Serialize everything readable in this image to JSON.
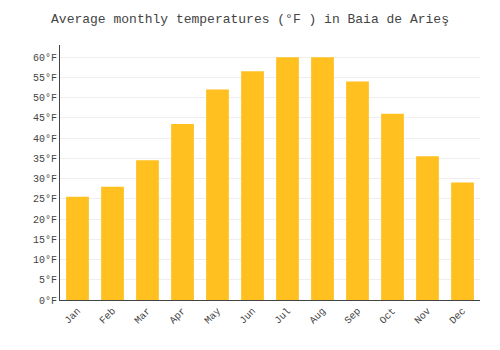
{
  "chart_data": {
    "type": "bar",
    "title": "Average monthly temperatures (°F ) in Baia de Arieş",
    "categories": [
      "Jan",
      "Feb",
      "Mar",
      "Apr",
      "May",
      "Jun",
      "Jul",
      "Aug",
      "Sep",
      "Oct",
      "Nov",
      "Dec"
    ],
    "values": [
      25.5,
      28.0,
      34.5,
      43.5,
      52.0,
      56.5,
      60.0,
      60.0,
      54.0,
      46.0,
      35.5,
      29.0
    ],
    "color": "#FFC020",
    "ylim": [
      0,
      63
    ],
    "yticks": [
      {
        "value": 0,
        "label": "0°F"
      },
      {
        "value": 5,
        "label": "5°F"
      },
      {
        "value": 10,
        "label": "10°F"
      },
      {
        "value": 15,
        "label": "15°F"
      },
      {
        "value": 20,
        "label": "20°F"
      },
      {
        "value": 25,
        "label": "25°F"
      },
      {
        "value": 30,
        "label": "30°F"
      },
      {
        "value": 35,
        "label": "35°F"
      },
      {
        "value": 40,
        "label": "40°F"
      },
      {
        "value": 45,
        "label": "45°F"
      },
      {
        "value": 50,
        "label": "50°F"
      },
      {
        "value": 55,
        "label": "55°F"
      },
      {
        "value": 60,
        "label": "60°F"
      }
    ],
    "grid": true
  }
}
